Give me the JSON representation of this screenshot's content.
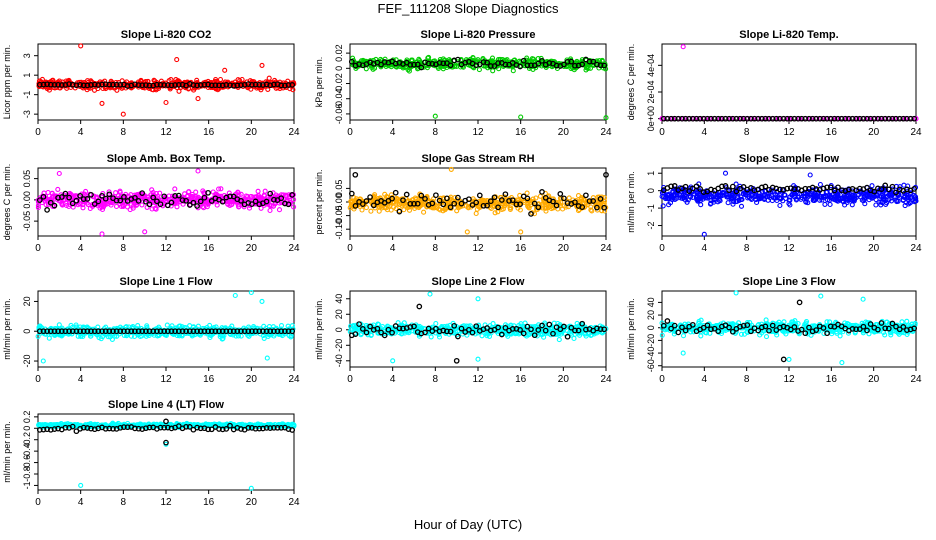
{
  "title": "FEF_111208  Slope Diagnostics",
  "xlabel": "Hour of Day (UTC)",
  "chart_data": [
    {
      "type": "scatter",
      "title": "Slope Li-820 CO2",
      "ylabel": "Licor ppm per min.",
      "xlim": [
        0,
        24
      ],
      "ylim": [
        -3.6,
        4.2
      ],
      "xticks": [
        0,
        4,
        8,
        12,
        16,
        20,
        24
      ],
      "yticks": [
        -3,
        -1,
        1,
        3
      ],
      "grid": false,
      "series": [
        {
          "color": "#ff0000",
          "spread": 0.9,
          "center": 0.0,
          "points": [
            [
              4,
              4.0
            ],
            [
              8,
              -3.0
            ],
            [
              13,
              2.6
            ],
            [
              17.5,
              1.5
            ],
            [
              21,
              2.0
            ],
            [
              6,
              -1.9
            ],
            [
              12,
              -1.8
            ],
            [
              15,
              -1.4
            ]
          ]
        },
        {
          "color": "#000000",
          "spread": 0.15,
          "center": 0.0,
          "points": []
        }
      ]
    },
    {
      "type": "scatter",
      "title": "Slope Li-820 Pressure",
      "ylabel": "kPa per min.",
      "xlim": [
        0,
        24
      ],
      "ylim": [
        -0.068,
        0.032
      ],
      "xticks": [
        0,
        4,
        8,
        12,
        16,
        20,
        24
      ],
      "yticks": [
        -0.06,
        -0.04,
        -0.02,
        0.0,
        0.02
      ],
      "grid": false,
      "series": [
        {
          "color": "#00cc00",
          "spread": 0.012,
          "center": 0.006,
          "points": [
            [
              8,
              -0.063
            ],
            [
              16,
              -0.064
            ],
            [
              24,
              -0.065
            ]
          ]
        },
        {
          "color": "#000000",
          "spread": 0.008,
          "center": 0.006,
          "points": []
        }
      ]
    },
    {
      "type": "scatter",
      "title": "Slope Li-820 Temp.",
      "ylabel": "degrees C per min.",
      "xlim": [
        0,
        24
      ],
      "ylim": [
        -1e-05,
        0.00056
      ],
      "xticks": [
        0,
        4,
        8,
        12,
        16,
        20,
        24
      ],
      "yticks": [
        0,
        0.0002,
        0.0004
      ],
      "ytick_labels": [
        "0e+00",
        "2e-04",
        "4e-04"
      ],
      "grid": false,
      "series": [
        {
          "color": "#ff00ff",
          "spread": 0,
          "center": 0,
          "points": [
            [
              2,
              0.00054
            ],
            [
              0,
              0
            ],
            [
              4,
              0
            ],
            [
              8,
              0
            ],
            [
              12,
              0
            ],
            [
              16,
              0
            ],
            [
              20,
              0
            ],
            [
              24,
              0
            ]
          ]
        },
        {
          "color": "#000000",
          "spread": 0,
          "center": 0,
          "points": []
        }
      ]
    },
    {
      "type": "scatter",
      "title": "Slope Amb. Box Temp.",
      "ylabel": "degrees C per min.",
      "xlim": [
        0,
        24
      ],
      "ylim": [
        -0.085,
        0.075
      ],
      "xticks": [
        0,
        4,
        8,
        12,
        16,
        20,
        24
      ],
      "yticks": [
        -0.05,
        0.0,
        0.05
      ],
      "ytick_labels": [
        "-0.05",
        "0.00",
        "0.05"
      ],
      "grid": false,
      "series": [
        {
          "color": "#ff00ff",
          "spread": 0.035,
          "center": 0.0,
          "points": [
            [
              6,
              -0.08
            ],
            [
              10,
              -0.075
            ],
            [
              15,
              0.068
            ],
            [
              2,
              0.062
            ]
          ]
        },
        {
          "color": "#000000",
          "spread": 0.03,
          "center": 0.0,
          "points": []
        }
      ]
    },
    {
      "type": "scatter",
      "title": "Slope Gas Stream RH",
      "ylabel": "percent per min.",
      "xlim": [
        0,
        24
      ],
      "ylim": [
        -0.125,
        0.125
      ],
      "xticks": [
        0,
        4,
        8,
        12,
        16,
        20,
        24
      ],
      "yticks": [
        -0.1,
        -0.05,
        0.0,
        0.05
      ],
      "ytick_labels": [
        "-0.10",
        "-0.05",
        "0.00",
        "0.05"
      ],
      "grid": false,
      "series": [
        {
          "color": "#ffaa00",
          "spread": 0.05,
          "center": -0.005,
          "points": [
            [
              9.5,
              0.12
            ],
            [
              11,
              -0.11
            ],
            [
              16,
              -0.11
            ]
          ]
        },
        {
          "color": "#000000",
          "spread": 0.05,
          "center": 0.0,
          "points": [
            [
              0.5,
              0.1
            ],
            [
              24,
              0.1
            ]
          ]
        }
      ]
    },
    {
      "type": "scatter",
      "title": "Slope Sample Flow",
      "ylabel": "ml/min per min.",
      "xlim": [
        0,
        24
      ],
      "ylim": [
        -2.6,
        1.3
      ],
      "xticks": [
        0,
        4,
        8,
        12,
        16,
        20,
        24
      ],
      "yticks": [
        -2,
        -1,
        0,
        1
      ],
      "grid": false,
      "series": [
        {
          "color": "#0000ff",
          "spread": 0.9,
          "center": -0.3,
          "points": [
            [
              4,
              -2.5
            ],
            [
              6,
              1.0
            ],
            [
              14,
              0.9
            ]
          ]
        },
        {
          "color": "#000000",
          "spread": 0.3,
          "center": 0.1,
          "points": []
        }
      ]
    },
    {
      "type": "scatter",
      "title": "Slope Line 1 Flow",
      "ylabel": "ml/min per min.",
      "xlim": [
        0,
        24
      ],
      "ylim": [
        -24,
        27
      ],
      "xticks": [
        0,
        4,
        8,
        12,
        16,
        20,
        24
      ],
      "yticks": [
        -20,
        0,
        20
      ],
      "grid": false,
      "series": [
        {
          "color": "#00ffff",
          "spread": 7,
          "center": 0,
          "points": [
            [
              18.5,
              24
            ],
            [
              20,
              26
            ],
            [
              21,
              20
            ],
            [
              0.5,
              -20
            ],
            [
              21.5,
              -18
            ]
          ]
        },
        {
          "color": "#000000",
          "spread": 0,
          "center": 0,
          "points": []
        }
      ]
    },
    {
      "type": "scatter",
      "title": "Slope Line 2 Flow",
      "ylabel": "ml/min per min.",
      "xlim": [
        0,
        24
      ],
      "ylim": [
        -48,
        50
      ],
      "xticks": [
        0,
        4,
        8,
        12,
        16,
        20,
        24
      ],
      "yticks": [
        -40,
        -20,
        0,
        20,
        40
      ],
      "grid": false,
      "series": [
        {
          "color": "#00ffff",
          "spread": 15,
          "center": 0,
          "points": [
            [
              7.5,
              46
            ],
            [
              12,
              40
            ],
            [
              4,
              -40
            ],
            [
              12,
              -38
            ]
          ]
        },
        {
          "color": "#000000",
          "spread": 12,
          "center": 0,
          "points": [
            [
              6.5,
              30
            ],
            [
              10,
              -40
            ]
          ]
        }
      ]
    },
    {
      "type": "scatter",
      "title": "Slope Line 3 Flow",
      "ylabel": "ml/min per min.",
      "xlim": [
        0,
        24
      ],
      "ylim": [
        -62,
        58
      ],
      "xticks": [
        0,
        4,
        8,
        12,
        16,
        20,
        24
      ],
      "yticks": [
        -60,
        -40,
        -20,
        0,
        20,
        40
      ],
      "grid": false,
      "series": [
        {
          "color": "#00ffff",
          "spread": 18,
          "center": 0,
          "points": [
            [
              7,
              55
            ],
            [
              15,
              50
            ],
            [
              19,
              45
            ],
            [
              2,
              -40
            ],
            [
              12,
              -50
            ],
            [
              17,
              -55
            ]
          ]
        },
        {
          "color": "#000000",
          "spread": 15,
          "center": 0,
          "points": [
            [
              11.5,
              -50
            ],
            [
              13,
              40
            ]
          ]
        }
      ]
    },
    {
      "type": "scatter",
      "title": "Slope Line 4 (LT) Flow",
      "ylabel": "ml/min per min.",
      "xlim": [
        0,
        24
      ],
      "ylim": [
        -1.08,
        0.25
      ],
      "xticks": [
        0,
        4,
        8,
        12,
        16,
        20,
        24
      ],
      "yticks": [
        -1.0,
        -0.8,
        -0.6,
        -0.4,
        -0.2,
        0.0,
        0.2
      ],
      "grid": false,
      "series": [
        {
          "color": "#00ffff",
          "spread": 0.05,
          "center": 0.05,
          "points": [
            [
              4,
              -1.0
            ],
            [
              20,
              -1.05
            ],
            [
              12,
              -0.28
            ]
          ]
        },
        {
          "color": "#000000",
          "spread": 0.06,
          "center": 0.0,
          "points": [
            [
              12,
              -0.25
            ],
            [
              12,
              0.12
            ]
          ]
        }
      ]
    }
  ]
}
